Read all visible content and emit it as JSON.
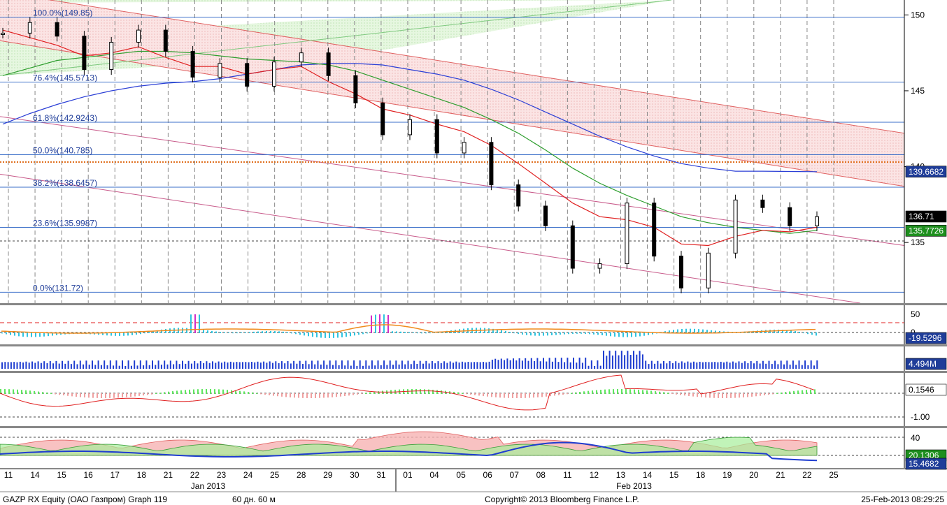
{
  "chart_data": {
    "type": "line",
    "title": "",
    "footer": {
      "left": "GAZP RX Equity (ОАО Газпром) Graph 119",
      "middle": "60 дн. 60 м",
      "copyright": "Copyright© 2013 Bloomberg Finance L.P.",
      "timestamp": "25-Feb-2013 08:29:25"
    },
    "x_axis": {
      "ticks": [
        "11",
        "14",
        "15",
        "16",
        "17",
        "18",
        "21",
        "22",
        "23",
        "24",
        "25",
        "28",
        "29",
        "30",
        "31",
        "01",
        "04",
        "05",
        "06",
        "07",
        "08",
        "11",
        "12",
        "13",
        "14",
        "15",
        "18",
        "19",
        "20",
        "21",
        "22",
        "25"
      ],
      "month_labels": [
        {
          "label": "Jan 2013",
          "at_tick": 7.5
        },
        {
          "label": "Feb 2013",
          "at_tick": 23.5
        }
      ]
    },
    "price_panel": {
      "ylim": [
        131.0,
        150.8
      ],
      "y_ticks": [
        135,
        140,
        145,
        150
      ],
      "fibonacci": [
        {
          "label": "100.0%(149.85)",
          "value": 149.85
        },
        {
          "label": "76.4%(145.5713)",
          "value": 145.5713
        },
        {
          "label": "61.8%(142.9243)",
          "value": 142.9243
        },
        {
          "label": "50.0%(140.785)",
          "value": 140.785
        },
        {
          "label": "38.2%(138.6457)",
          "value": 138.6457
        },
        {
          "label": "23.6%(135.9987)",
          "value": 135.9987
        },
        {
          "label": "0.0%(131.72)",
          "value": 131.72
        }
      ],
      "resistance_level": 140.3,
      "dashed_level": 135.1,
      "value_tags": [
        {
          "label": "139.6682",
          "value": 139.6682,
          "bg": "#1f3d99",
          "fg": "#ffffff"
        },
        {
          "label": "136.71",
          "value": 136.71,
          "bg": "#000000",
          "fg": "#ffffff"
        },
        {
          "label": "135.7726",
          "value": 135.7726,
          "bg": "#1e8f1e",
          "fg": "#ffffff"
        }
      ],
      "close_series": [
        148.8,
        149.5,
        148.6,
        146.4,
        148.2,
        149.0,
        147.6,
        145.9,
        146.8,
        145.3,
        146.9,
        147.5,
        146.0,
        144.2,
        142.1,
        143.1,
        140.9,
        141.6,
        138.8,
        137.4,
        136.1,
        133.3,
        133.6,
        137.6,
        134.1,
        132.0,
        134.3,
        137.8,
        137.3,
        136.1,
        136.7
      ],
      "sma_red": [
        149.0,
        148.5,
        148.0,
        147.3,
        147.5,
        147.9,
        147.2,
        146.6,
        146.6,
        146.1,
        146.4,
        146.6,
        145.6,
        144.8,
        143.8,
        143.4,
        142.8,
        142.3,
        141.4,
        140.2,
        138.9,
        137.6,
        136.7,
        136.5,
        136.0,
        134.9,
        134.8,
        135.4,
        135.8,
        135.7,
        136.0
      ],
      "sma_green": [
        146.0,
        146.5,
        147.0,
        147.2,
        147.4,
        147.6,
        147.6,
        147.5,
        147.3,
        147.1,
        147.0,
        146.9,
        146.7,
        146.3,
        145.7,
        145.1,
        144.5,
        143.9,
        143.1,
        142.2,
        141.1,
        139.9,
        138.9,
        138.1,
        137.4,
        136.7,
        136.3,
        136.0,
        135.8,
        135.6,
        135.8
      ],
      "sma_blue": [
        142.8,
        143.5,
        144.1,
        144.6,
        145.0,
        145.3,
        145.5,
        145.6,
        145.8,
        146.1,
        146.4,
        146.7,
        146.8,
        146.8,
        146.7,
        146.4,
        146.1,
        145.7,
        145.1,
        144.4,
        143.6,
        142.8,
        142.0,
        141.3,
        140.7,
        140.2,
        139.9,
        139.7,
        139.7,
        139.68,
        139.6682
      ]
    },
    "indicator_panels": [
      {
        "name": "",
        "y_ticks": [
          {
            "label": "50",
            "value": 50
          },
          {
            "label": "0",
            "value": 0
          }
        ],
        "value_tag": {
          "label": "-19.5296",
          "value": -19.5296,
          "bg": "#1f3d99"
        }
      },
      {
        "name": "",
        "y_ticks": [],
        "value_tag": {
          "label": "4.494M",
          "value": 4.494,
          "bg": "#1f3d99"
        }
      },
      {
        "name": "",
        "y_ticks": [
          {
            "label": "-1.00",
            "value": -1.0
          }
        ],
        "value_tag": {
          "label": "0.1546",
          "value": 0.1546,
          "bg": "#ffffff"
        }
      },
      {
        "name": "",
        "y_ticks": [
          {
            "label": "40",
            "value": 40
          },
          {
            "label": "20",
            "value": 20
          }
        ],
        "value_tags": [
          {
            "label": "20.1306",
            "value": 20.1306,
            "bg": "#1e8f1e"
          },
          {
            "label": "15.4682",
            "value": 15.4682,
            "bg": "#1f3d99"
          }
        ]
      }
    ]
  }
}
